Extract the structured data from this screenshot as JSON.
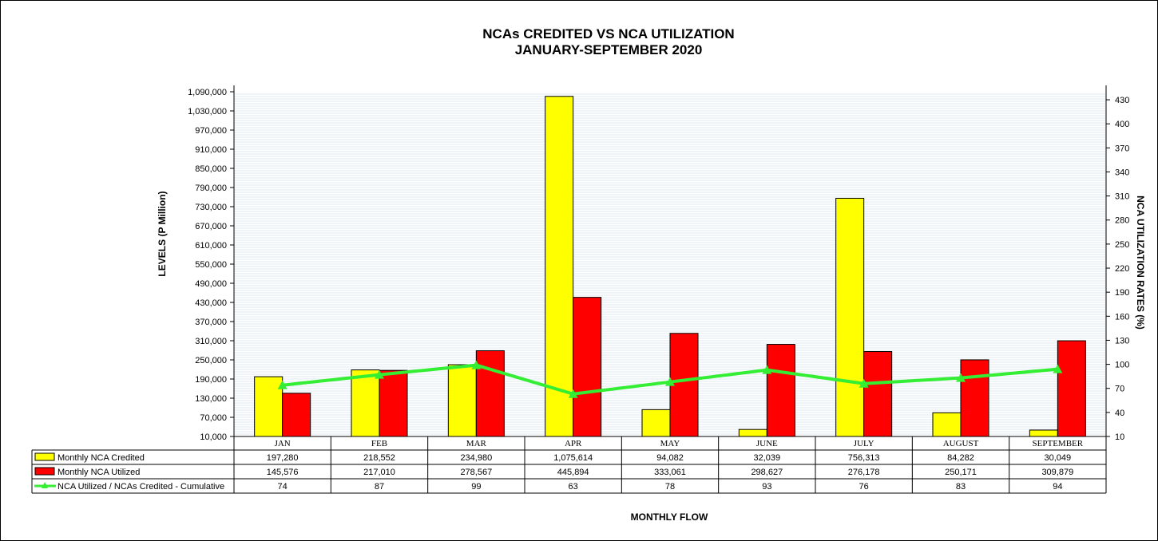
{
  "chart_data": {
    "type": "bar",
    "title": "NCAs CREDITED VS NCA UTILIZATION",
    "subtitle": "JANUARY-SEPTEMBER 2020",
    "xlabel": "MONTHLY  FLOW",
    "ylabel": "LEVELS (P Million)",
    "y2label": "NCA  UTILIZATION  RATES (%)",
    "categories": [
      "JAN",
      "FEB",
      "MAR",
      "APR",
      "MAY",
      "JUNE",
      "JULY",
      "AUGUST",
      "SEPTEMBER"
    ],
    "ylim": [
      10000,
      1090000
    ],
    "yticks": [
      10000,
      70000,
      130000,
      190000,
      250000,
      310000,
      370000,
      430000,
      490000,
      550000,
      610000,
      670000,
      730000,
      790000,
      850000,
      910000,
      970000,
      1030000,
      1090000
    ],
    "ytick_labels": [
      "10,000",
      "70,000",
      "130,000",
      "190,000",
      "250,000",
      "310,000",
      "370,000",
      "430,000",
      "490,000",
      "550,000",
      "610,000",
      "670,000",
      "730,000",
      "790,000",
      "850,000",
      "910,000",
      "970,000",
      "1,030,000",
      "1,090,000"
    ],
    "y2lim": [
      10,
      440
    ],
    "y2ticks": [
      10,
      40,
      70,
      100,
      130,
      160,
      190,
      220,
      250,
      280,
      310,
      340,
      370,
      400,
      430
    ],
    "grid": true,
    "legend": "data table",
    "series": [
      {
        "name": "Monthly NCA Credited",
        "kind": "bar",
        "axis": "left",
        "color": "#FFFF00",
        "values": [
          197280,
          218552,
          234980,
          1075614,
          94082,
          32039,
          756313,
          84282,
          30049
        ],
        "labels": [
          "197,280",
          "218,552",
          "234,980",
          "1,075,614",
          "94,082",
          "32,039",
          "756,313",
          "84,282",
          "30,049"
        ]
      },
      {
        "name": "Monthly NCA Utilized",
        "kind": "bar",
        "axis": "left",
        "color": "#FF0000",
        "values": [
          145576,
          217010,
          278567,
          445894,
          333061,
          298627,
          276178,
          250171,
          309879
        ],
        "labels": [
          "145,576",
          "217,010",
          "278,567",
          "445,894",
          "333,061",
          "298,627",
          "276,178",
          "250,171",
          "309,879"
        ]
      },
      {
        "name": "NCA Utilized / NCAs Credited - Cumulative",
        "kind": "line",
        "axis": "right",
        "color": "#33EE33",
        "values": [
          74,
          87,
          99,
          63,
          78,
          93,
          76,
          83,
          94
        ],
        "labels": [
          "74",
          "87",
          "99",
          "63",
          "78",
          "93",
          "76",
          "83",
          "94"
        ]
      }
    ]
  }
}
